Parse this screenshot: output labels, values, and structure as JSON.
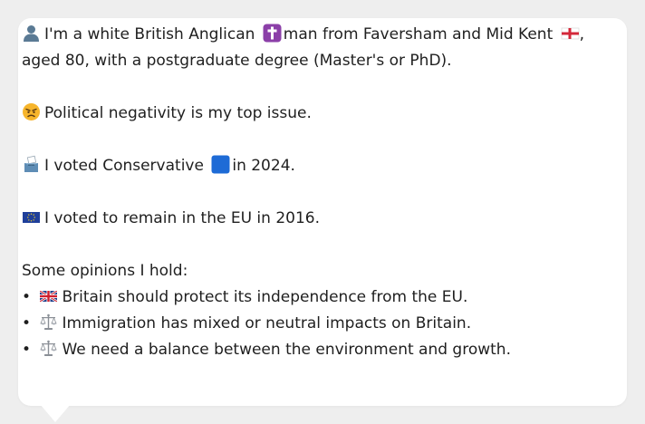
{
  "profile": {
    "intro_part1": "I'm a white British Anglican",
    "intro_part2": "man from Faversham and Mid Kent",
    "intro_part3": ",",
    "intro_line2": "aged 80, with a postgraduate degree (Master's or PhD).",
    "top_issue": "Political negativity is my top issue.",
    "vote_2024_part1": "I voted Conservative",
    "vote_2024_part2": "in 2024.",
    "vote_2016": "I voted to remain in the EU in 2016.",
    "opinions_heading": "Some opinions I hold:",
    "bullet_char": "•",
    "opinions": [
      {
        "icon": "uk-flag-icon",
        "text": "Britain should protect its independence from the EU."
      },
      {
        "icon": "scales-icon",
        "text": "Immigration has mixed or neutral impacts on Britain."
      },
      {
        "icon": "scales-icon",
        "text": "We need a balance between the environment and growth."
      }
    ]
  },
  "colors": {
    "background": "#eeeeee",
    "card": "#ffffff",
    "text": "#1f1f1f",
    "conservative_blue": "#1e6bd6",
    "cross_purple": "#8b3fa8"
  }
}
